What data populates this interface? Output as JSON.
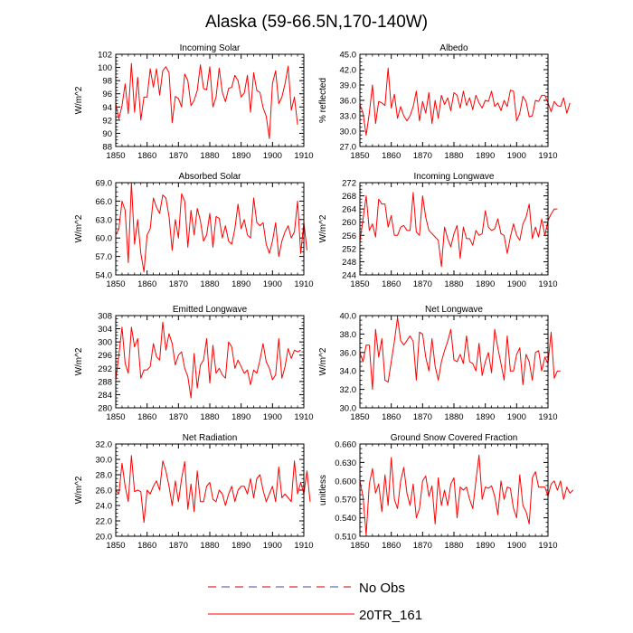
{
  "figure": {
    "title": "Alaska (59-66.5N,170-140W)",
    "legend": [
      {
        "label": "No Obs",
        "style": "dashed",
        "colors": [
          "#cc0000",
          "#4444aa"
        ]
      },
      {
        "label": "20TR_161",
        "style": "solid",
        "color": "#ff0000"
      }
    ]
  },
  "chart_data": [
    {
      "type": "line",
      "title": "Incoming Solar",
      "xlabel": "",
      "ylabel": "W/m^2",
      "xlim": [
        1850,
        1910
      ],
      "ylim": [
        88,
        102
      ],
      "xticks": [
        1850,
        1860,
        1870,
        1880,
        1890,
        1900,
        1910
      ],
      "yticks": [
        "88",
        "90",
        "92",
        "94",
        "96",
        "98",
        "100",
        "102"
      ],
      "x_start": 1850,
      "series": [
        {
          "color": "#ff0000",
          "values": [
            94.5,
            92.2,
            94.2,
            97.5,
            93.0,
            100.6,
            93.2,
            98.5,
            92.0,
            95.5,
            95.5,
            99.8,
            97.0,
            99.8,
            95.8,
            99.5,
            100.1,
            99.2,
            91.6,
            95.6,
            95.3,
            94.0,
            99.0,
            98.0,
            94.2,
            95.0,
            96.5,
            100.4,
            96.8,
            96.6,
            100.1,
            94.0,
            95.5,
            99.9,
            96.2,
            94.8,
            96.8,
            97.0,
            98.8,
            98.0,
            95.5,
            96.1,
            98.8,
            93.2,
            99.2,
            96.5,
            96.2,
            93.9,
            92.6,
            89.2,
            97.6,
            99.5,
            94.5,
            95.5,
            97.5,
            100.2,
            93.5,
            95.5,
            91.3
          ]
        }
      ]
    },
    {
      "type": "line",
      "title": "Albedo",
      "xlabel": "",
      "ylabel": "% reflected",
      "xlim": [
        1850,
        1910
      ],
      "ylim": [
        27,
        45
      ],
      "xticks": [
        1850,
        1860,
        1870,
        1880,
        1890,
        1900,
        1910
      ],
      "yticks": [
        "27.0",
        "30.0",
        "33.0",
        "36.0",
        "39.0",
        "42.0",
        "45.0"
      ],
      "x_start": 1850,
      "series": [
        {
          "color": "#ff0000",
          "values": [
            35.2,
            33.5,
            29.2,
            33.5,
            39.0,
            31.5,
            35.8,
            35.5,
            35.0,
            42.3,
            34.5,
            37.2,
            32.5,
            34.8,
            33.0,
            32.0,
            33.0,
            34.8,
            37.8,
            32.0,
            35.8,
            33.5,
            37.5,
            31.5,
            36.0,
            32.5,
            37.0,
            35.2,
            36.5,
            34.0,
            37.5,
            37.0,
            34.5,
            37.8,
            35.0,
            36.5,
            34.2,
            37.0,
            35.5,
            34.5,
            36.0,
            35.8,
            37.8,
            34.8,
            35.5,
            34.0,
            36.0,
            34.8,
            38.0,
            37.8,
            32.0,
            33.5,
            36.8,
            35.8,
            32.8,
            33.0,
            36.0,
            35.8,
            37.0,
            37.0,
            35.5,
            33.8,
            35.8,
            35.0,
            34.8,
            36.5,
            33.5,
            35.5
          ]
        }
      ]
    },
    {
      "type": "line",
      "title": "Absorbed Solar",
      "xlabel": "",
      "ylabel": "W/m^2",
      "xlim": [
        1850,
        1910
      ],
      "ylim": [
        54,
        69
      ],
      "xticks": [
        1850,
        1860,
        1870,
        1880,
        1890,
        1900,
        1910
      ],
      "yticks": [
        "54.0",
        "57.0",
        "60.0",
        "63.0",
        "66.0",
        "69.0"
      ],
      "x_start": 1850,
      "series": [
        {
          "color": "#ff0000",
          "values": [
            60.5,
            61.5,
            66.0,
            64.5,
            56.0,
            69.0,
            59.0,
            63.0,
            57.5,
            54.5,
            60.5,
            61.5,
            66.5,
            65.0,
            64.0,
            67.0,
            66.5,
            63.5,
            58.0,
            63.0,
            60.0,
            67.2,
            66.0,
            58.5,
            64.5,
            60.5,
            64.8,
            62.8,
            59.5,
            60.5,
            64.0,
            58.5,
            63.5,
            63.2,
            60.0,
            62.0,
            59.5,
            59.0,
            61.5,
            65.5,
            61.5,
            63.0,
            60.5,
            60.0,
            66.5,
            62.5,
            62.0,
            62.5,
            59.0,
            57.5,
            59.5,
            62.5,
            57.0,
            59.5,
            61.0,
            62.0,
            60.0,
            61.0,
            66.0,
            57.5,
            62.5,
            58.0
          ]
        }
      ]
    },
    {
      "type": "line",
      "title": "Incoming Longwave",
      "xlabel": "",
      "ylabel": "W/m^2",
      "xlim": [
        1850,
        1910
      ],
      "ylim": [
        244,
        272
      ],
      "xticks": [
        1850,
        1860,
        1870,
        1880,
        1890,
        1900,
        1910
      ],
      "yticks": [
        "244",
        "248",
        "252",
        "256",
        "260",
        "264",
        "268",
        "272"
      ],
      "x_start": 1850,
      "series": [
        {
          "color": "#ff0000",
          "values": [
            254.0,
            261.0,
            268.0,
            257.5,
            259.5,
            255.5,
            267.0,
            265.5,
            265.5,
            258.5,
            262.0,
            256.0,
            256.0,
            258.5,
            259.0,
            257.5,
            257.5,
            269.0,
            257.0,
            256.0,
            268.0,
            261.5,
            257.5,
            256.5,
            255.5,
            254.5,
            246.5,
            258.5,
            255.0,
            252.5,
            256.5,
            259.0,
            249.0,
            258.5,
            255.0,
            255.0,
            253.0,
            257.5,
            256.0,
            256.5,
            263.5,
            258.5,
            257.5,
            258.0,
            261.0,
            256.5,
            256.0,
            250.5,
            255.5,
            259.5,
            256.0,
            254.5,
            259.5,
            261.5,
            265.5,
            255.0,
            258.5,
            255.5,
            261.0,
            256.0,
            260.5,
            262.5,
            264.0,
            264.0
          ]
        }
      ]
    },
    {
      "type": "line",
      "title": "Emitted Longwave",
      "xlabel": "",
      "ylabel": "W/m^2",
      "xlim": [
        1850,
        1910
      ],
      "ylim": [
        280,
        308
      ],
      "xticks": [
        1850,
        1860,
        1870,
        1880,
        1890,
        1900,
        1910
      ],
      "yticks": [
        "280",
        "284",
        "288",
        "292",
        "296",
        "300",
        "304",
        "308"
      ],
      "x_start": 1850,
      "series": [
        {
          "color": "#ff0000",
          "values": [
            288.5,
            296.0,
            304.5,
            293.5,
            290.5,
            304.5,
            298.5,
            301.0,
            289.0,
            291.5,
            291.5,
            292.5,
            299.5,
            295.5,
            294.5,
            306.0,
            297.5,
            302.5,
            299.5,
            293.0,
            296.0,
            297.0,
            292.0,
            289.5,
            283.0,
            296.5,
            286.0,
            293.0,
            294.5,
            301.0,
            287.5,
            299.0,
            290.5,
            292.0,
            290.0,
            289.0,
            300.0,
            298.5,
            292.0,
            294.5,
            292.5,
            290.5,
            291.5,
            287.0,
            291.5,
            290.5,
            294.5,
            299.5,
            294.0,
            292.0,
            288.5,
            290.0,
            301.0,
            289.0,
            292.5,
            298.0,
            295.0,
            297.5,
            297.0,
            297.5
          ]
        }
      ]
    },
    {
      "type": "line",
      "title": "Net Longwave",
      "xlabel": "",
      "ylabel": "W/m^2",
      "xlim": [
        1850,
        1910
      ],
      "ylim": [
        30,
        40
      ],
      "xticks": [
        1850,
        1860,
        1870,
        1880,
        1890,
        1900,
        1910
      ],
      "yticks": [
        "30.0",
        "32.0",
        "34.0",
        "36.0",
        "38.0",
        "40.0"
      ],
      "x_start": 1850,
      "series": [
        {
          "color": "#ff0000",
          "values": [
            36.0,
            35.0,
            36.8,
            36.8,
            32.0,
            38.5,
            35.5,
            37.5,
            33.0,
            32.8,
            35.0,
            37.2,
            39.8,
            37.3,
            36.8,
            37.3,
            37.8,
            37.2,
            33.0,
            38.2,
            38.0,
            35.5,
            34.0,
            37.5,
            34.5,
            33.0,
            35.0,
            36.2,
            37.2,
            38.5,
            35.2,
            35.0,
            35.8,
            34.8,
            37.8,
            35.0,
            34.8,
            34.0,
            37.0,
            33.5,
            35.0,
            36.0,
            33.8,
            38.5,
            36.5,
            34.8,
            33.0,
            37.8,
            34.0,
            34.0,
            35.8,
            36.5,
            32.5,
            35.8,
            35.0,
            33.0,
            36.0,
            36.2,
            34.0,
            35.5,
            34.8,
            38.2,
            33.2,
            34.0,
            34.0
          ]
        }
      ]
    },
    {
      "type": "line",
      "title": "Net Radiation",
      "xlabel": "",
      "ylabel": "W/m^2",
      "xlim": [
        1850,
        1910
      ],
      "ylim": [
        20,
        32
      ],
      "xticks": [
        1850,
        1860,
        1870,
        1880,
        1890,
        1900,
        1910
      ],
      "yticks": [
        "20.0",
        "22.0",
        "24.0",
        "26.0",
        "28.0",
        "30.0",
        "32.0"
      ],
      "x_start": 1850,
      "series": [
        {
          "color": "#ff0000",
          "values": [
            26.0,
            25.5,
            29.5,
            26.5,
            24.5,
            30.5,
            25.8,
            26.0,
            25.8,
            21.8,
            26.0,
            25.5,
            26.5,
            27.2,
            26.0,
            29.8,
            28.5,
            26.5,
            24.0,
            27.2,
            24.5,
            27.5,
            29.7,
            23.5,
            26.8,
            23.2,
            28.5,
            24.5,
            24.5,
            26.5,
            27.0,
            24.8,
            24.5,
            26.0,
            25.5,
            24.0,
            25.5,
            26.5,
            24.5,
            26.0,
            26.5,
            26.5,
            25.5,
            27.5,
            25.0,
            27.5,
            28.0,
            26.0,
            24.5,
            25.5,
            26.5,
            24.5,
            29.0,
            25.0,
            25.5,
            25.0,
            24.5,
            29.8,
            25.5,
            27.0,
            25.5,
            28.5,
            24.5
          ]
        }
      ]
    },
    {
      "type": "line",
      "title": "Ground Snow Covered Fraction",
      "xlabel": "",
      "ylabel": "unitless",
      "xlim": [
        1850,
        1910
      ],
      "ylim": [
        0.51,
        0.66
      ],
      "xticks": [
        1850,
        1860,
        1870,
        1880,
        1890,
        1900,
        1910
      ],
      "yticks": [
        "0.510",
        "0.540",
        "0.570",
        "0.600",
        "0.630",
        "0.660"
      ],
      "x_start": 1850,
      "series": [
        {
          "color": "#ff0000",
          "values": [
            0.6,
            0.575,
            0.512,
            0.595,
            0.62,
            0.58,
            0.595,
            0.55,
            0.61,
            0.56,
            0.638,
            0.57,
            0.555,
            0.6,
            0.622,
            0.58,
            0.56,
            0.595,
            0.54,
            0.555,
            0.6,
            0.608,
            0.575,
            0.592,
            0.53,
            0.605,
            0.56,
            0.585,
            0.56,
            0.595,
            0.605,
            0.54,
            0.59,
            0.585,
            0.59,
            0.57,
            0.555,
            0.6,
            0.642,
            0.57,
            0.59,
            0.588,
            0.592,
            0.575,
            0.545,
            0.6,
            0.57,
            0.59,
            0.588,
            0.555,
            0.54,
            0.61,
            0.56,
            0.55,
            0.53,
            0.605,
            0.615,
            0.59,
            0.59,
            0.59,
            0.575,
            0.595,
            0.6,
            0.585,
            0.6,
            0.57,
            0.59,
            0.58,
            0.585
          ]
        }
      ]
    }
  ]
}
